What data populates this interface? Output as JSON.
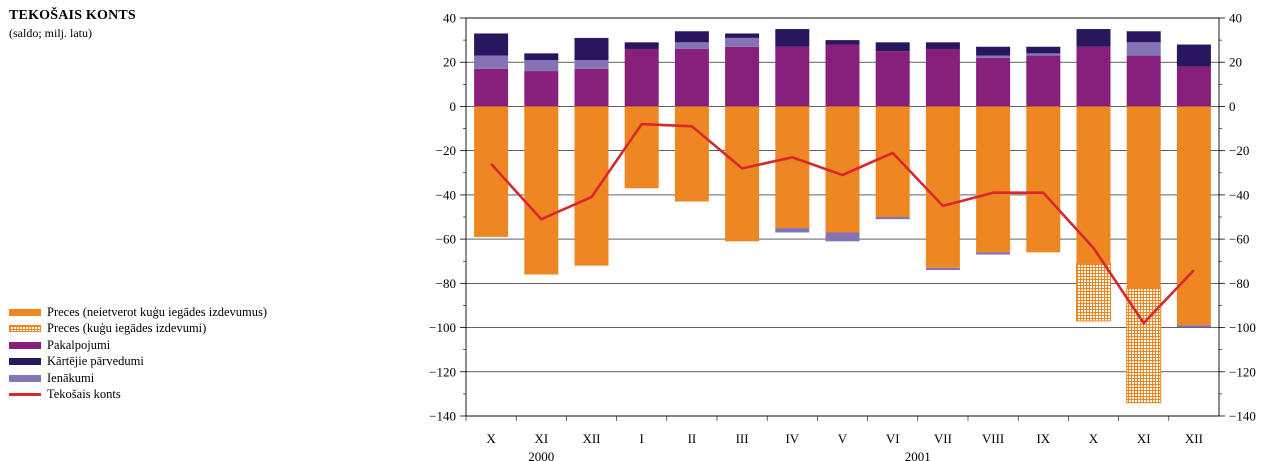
{
  "title": "TEKOŠAIS KONTS",
  "subtitle": "(saldo; milj. latu)",
  "chart_data": {
    "type": "bar",
    "stacked": true,
    "categories": [
      "X",
      "XI",
      "XII",
      "I",
      "II",
      "III",
      "IV",
      "V",
      "VI",
      "VII",
      "VIII",
      "IX",
      "X",
      "XI",
      "XII"
    ],
    "year_labels": [
      {
        "label": "2000",
        "from": 0,
        "to": 2
      },
      {
        "label": "2001",
        "from": 3,
        "to": 14
      }
    ],
    "ylim": [
      -140,
      40
    ],
    "yticks": [
      -140,
      -120,
      -100,
      -80,
      -60,
      -40,
      -20,
      0,
      20,
      40
    ],
    "secondary_axis": true,
    "grid": true,
    "legend_position": "left",
    "series": [
      {
        "name": "Preces (neietverot kuģu iegādes izdevumus)",
        "key": "goods",
        "color": "#EE8722",
        "values": [
          -59,
          -76,
          -72,
          -37,
          -43,
          -61,
          -55,
          -57,
          -50,
          -73,
          -66,
          -66,
          -71,
          -82,
          -99
        ]
      },
      {
        "name": "Preces (kuģu iegādes izdevumi)",
        "key": "ships",
        "color": "#EE8722",
        "pattern": "grid",
        "values": [
          0,
          0,
          0,
          0,
          0,
          0,
          0,
          0,
          0,
          0,
          0,
          0,
          -26,
          -52,
          0
        ]
      },
      {
        "name": "Pakalpojumi",
        "key": "services",
        "color": "#86207A",
        "values": [
          17,
          16,
          17,
          26,
          26,
          27,
          27,
          28,
          25,
          26,
          22,
          23,
          27,
          23,
          18
        ]
      },
      {
        "name": "Kārtējie pārvedumi",
        "key": "transfers",
        "color": "#28175F",
        "values": [
          10,
          3,
          10,
          3,
          5,
          2,
          8,
          2,
          4,
          3,
          4,
          3,
          8,
          5,
          10
        ]
      },
      {
        "name": "Ienākumi",
        "key": "income",
        "color": "#8473B5",
        "values": [
          6,
          5,
          4,
          0,
          3,
          4,
          0,
          0,
          0,
          0,
          1,
          1,
          0,
          6,
          0
        ],
        "negative_values": [
          0,
          0,
          0,
          0,
          0,
          0,
          -2,
          -4,
          -1,
          -1,
          -1,
          0,
          0,
          0,
          -1
        ]
      },
      {
        "name": "Tekošais konts",
        "key": "current",
        "type": "line",
        "color": "#D9272E",
        "values": [
          -26,
          -51,
          -41,
          -8,
          -9,
          -28,
          -23,
          -31,
          -21,
          -45,
          -39,
          -39,
          -64,
          -98,
          -74
        ]
      }
    ]
  }
}
